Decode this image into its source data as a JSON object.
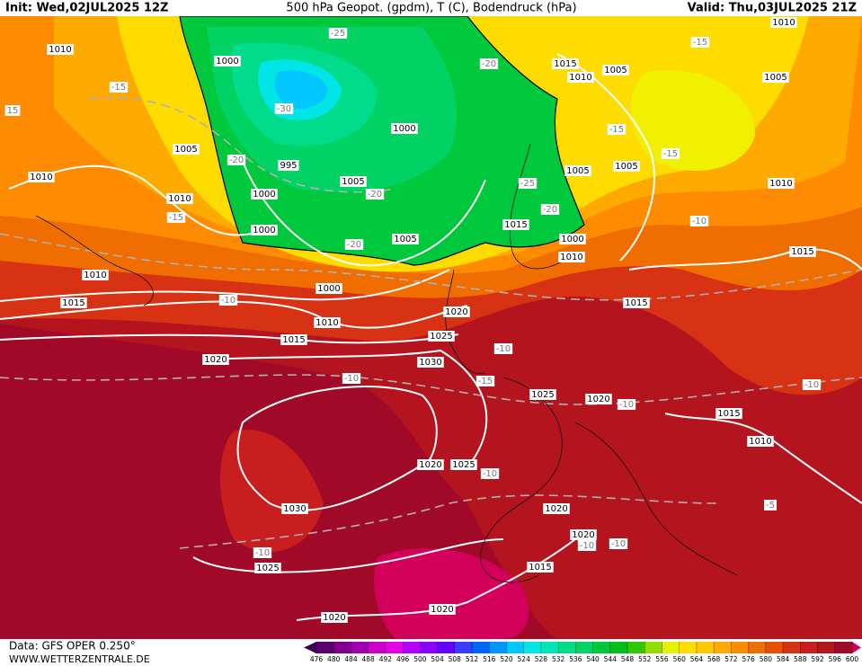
{
  "header": {
    "init": "Init: Wed,02JUL2025 12Z",
    "title": "500 hPa Geopot. (gpdm), T (C), Bodendruck (hPa)",
    "valid": "Valid: Thu,03JUL2025 21Z"
  },
  "footer": {
    "data": "Data: GFS OPER 0.250°",
    "site": "WWW.WETTERZENTRALE.DE"
  },
  "isobar_labels": [
    "1010",
    "1000",
    "995",
    "1010",
    "1000",
    "1010",
    "1000",
    "1005",
    "1005",
    "1000",
    "1015",
    "1010",
    "1005",
    "1005",
    "1010",
    "1005",
    "1005",
    "1015",
    "1000",
    "1010",
    "1005",
    "1000",
    "1010",
    "1015",
    "1010",
    "1020",
    "1010",
    "1015",
    "1015",
    "1015",
    "1025",
    "1020",
    "1030",
    "1025",
    "1020",
    "1015",
    "1010",
    "1020",
    "1025",
    "1020",
    "1030",
    "1020",
    "1025",
    "1015",
    "1020",
    "1020"
  ],
  "temperature_labels": [
    "-15",
    "15",
    "-25",
    "-30",
    "-20",
    "-15",
    "-20",
    "-20",
    "-15",
    "-15",
    "-25",
    "-20",
    "-15",
    "-10",
    "-10",
    "-10",
    "-20",
    "-10",
    "-15",
    "-10",
    "-10",
    "-10",
    "-5",
    "-10",
    "-10",
    "-10"
  ],
  "scale": {
    "ticks": [
      476,
      480,
      484,
      488,
      492,
      496,
      500,
      504,
      508,
      512,
      516,
      520,
      524,
      528,
      532,
      536,
      540,
      544,
      548,
      552,
      556,
      560,
      564,
      568,
      572,
      576,
      580,
      584,
      588,
      592,
      596,
      600
    ],
    "colors": [
      "#3c0050",
      "#5a0070",
      "#80008c",
      "#a000b0",
      "#c800c8",
      "#e600e6",
      "#b400ff",
      "#8c00ff",
      "#6400ff",
      "#3c3cff",
      "#0064ff",
      "#0096ff",
      "#00c8ff",
      "#00e6e6",
      "#00e6b4",
      "#00dc8c",
      "#00d264",
      "#00c83c",
      "#00be1e",
      "#32c800",
      "#96dc00",
      "#e6f000",
      "#ffdc00",
      "#ffc800",
      "#ffaa00",
      "#ff8c00",
      "#f06e00",
      "#e65000",
      "#d73214",
      "#c81e1e",
      "#b4141e",
      "#a00a28",
      "#d2005a"
    ]
  }
}
